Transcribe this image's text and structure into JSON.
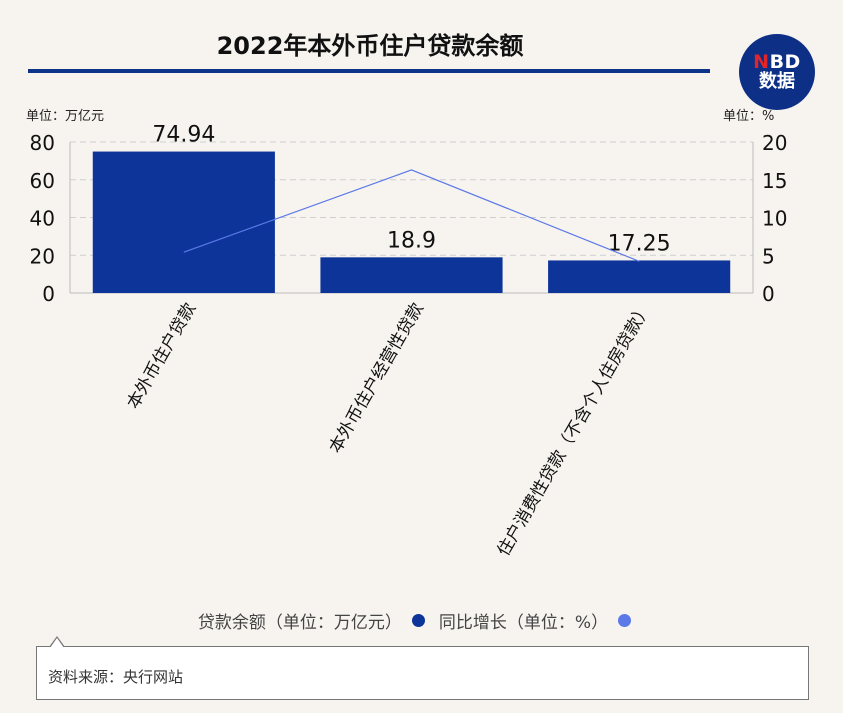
{
  "header": {
    "title": "2022年本外币住户贷款余额"
  },
  "logo": {
    "line1_n": "N",
    "line1_rest": "BD",
    "line2": "数据"
  },
  "units": {
    "left": "单位：万亿元",
    "right": "单位：%"
  },
  "legend": {
    "bar_label": "贷款余额（单位：万亿元）",
    "line_label": "同比增长（单位：%）"
  },
  "source": {
    "text": "资料来源：央行网站"
  },
  "colors": {
    "bar": "#0d3499",
    "line": "#5b79e8",
    "grid": "#cfcfcf",
    "axis": "#bdbdbd"
  },
  "chart_data": {
    "type": "bar",
    "categories": [
      "本外币住户贷款",
      "本外币住户经营性贷款",
      "住户消费性贷款（不含个人住房贷款）"
    ],
    "series": [
      {
        "name": "贷款余额（单位：万亿元）",
        "type": "bar",
        "axis": "left",
        "values": [
          74.94,
          18.9,
          17.25
        ],
        "labels": [
          "74.94",
          "18.9",
          "17.25"
        ]
      },
      {
        "name": "同比增长（单位：%）",
        "type": "line",
        "axis": "right",
        "values": [
          5.4,
          16.3,
          4.2
        ]
      }
    ],
    "y_left": {
      "min": 0,
      "max": 80,
      "ticks": [
        0,
        20,
        40,
        60,
        80
      ]
    },
    "y_right": {
      "min": 0,
      "max": 20,
      "ticks": [
        0,
        5,
        10,
        15,
        20
      ]
    },
    "grid": true,
    "legend_position": "bottom"
  }
}
